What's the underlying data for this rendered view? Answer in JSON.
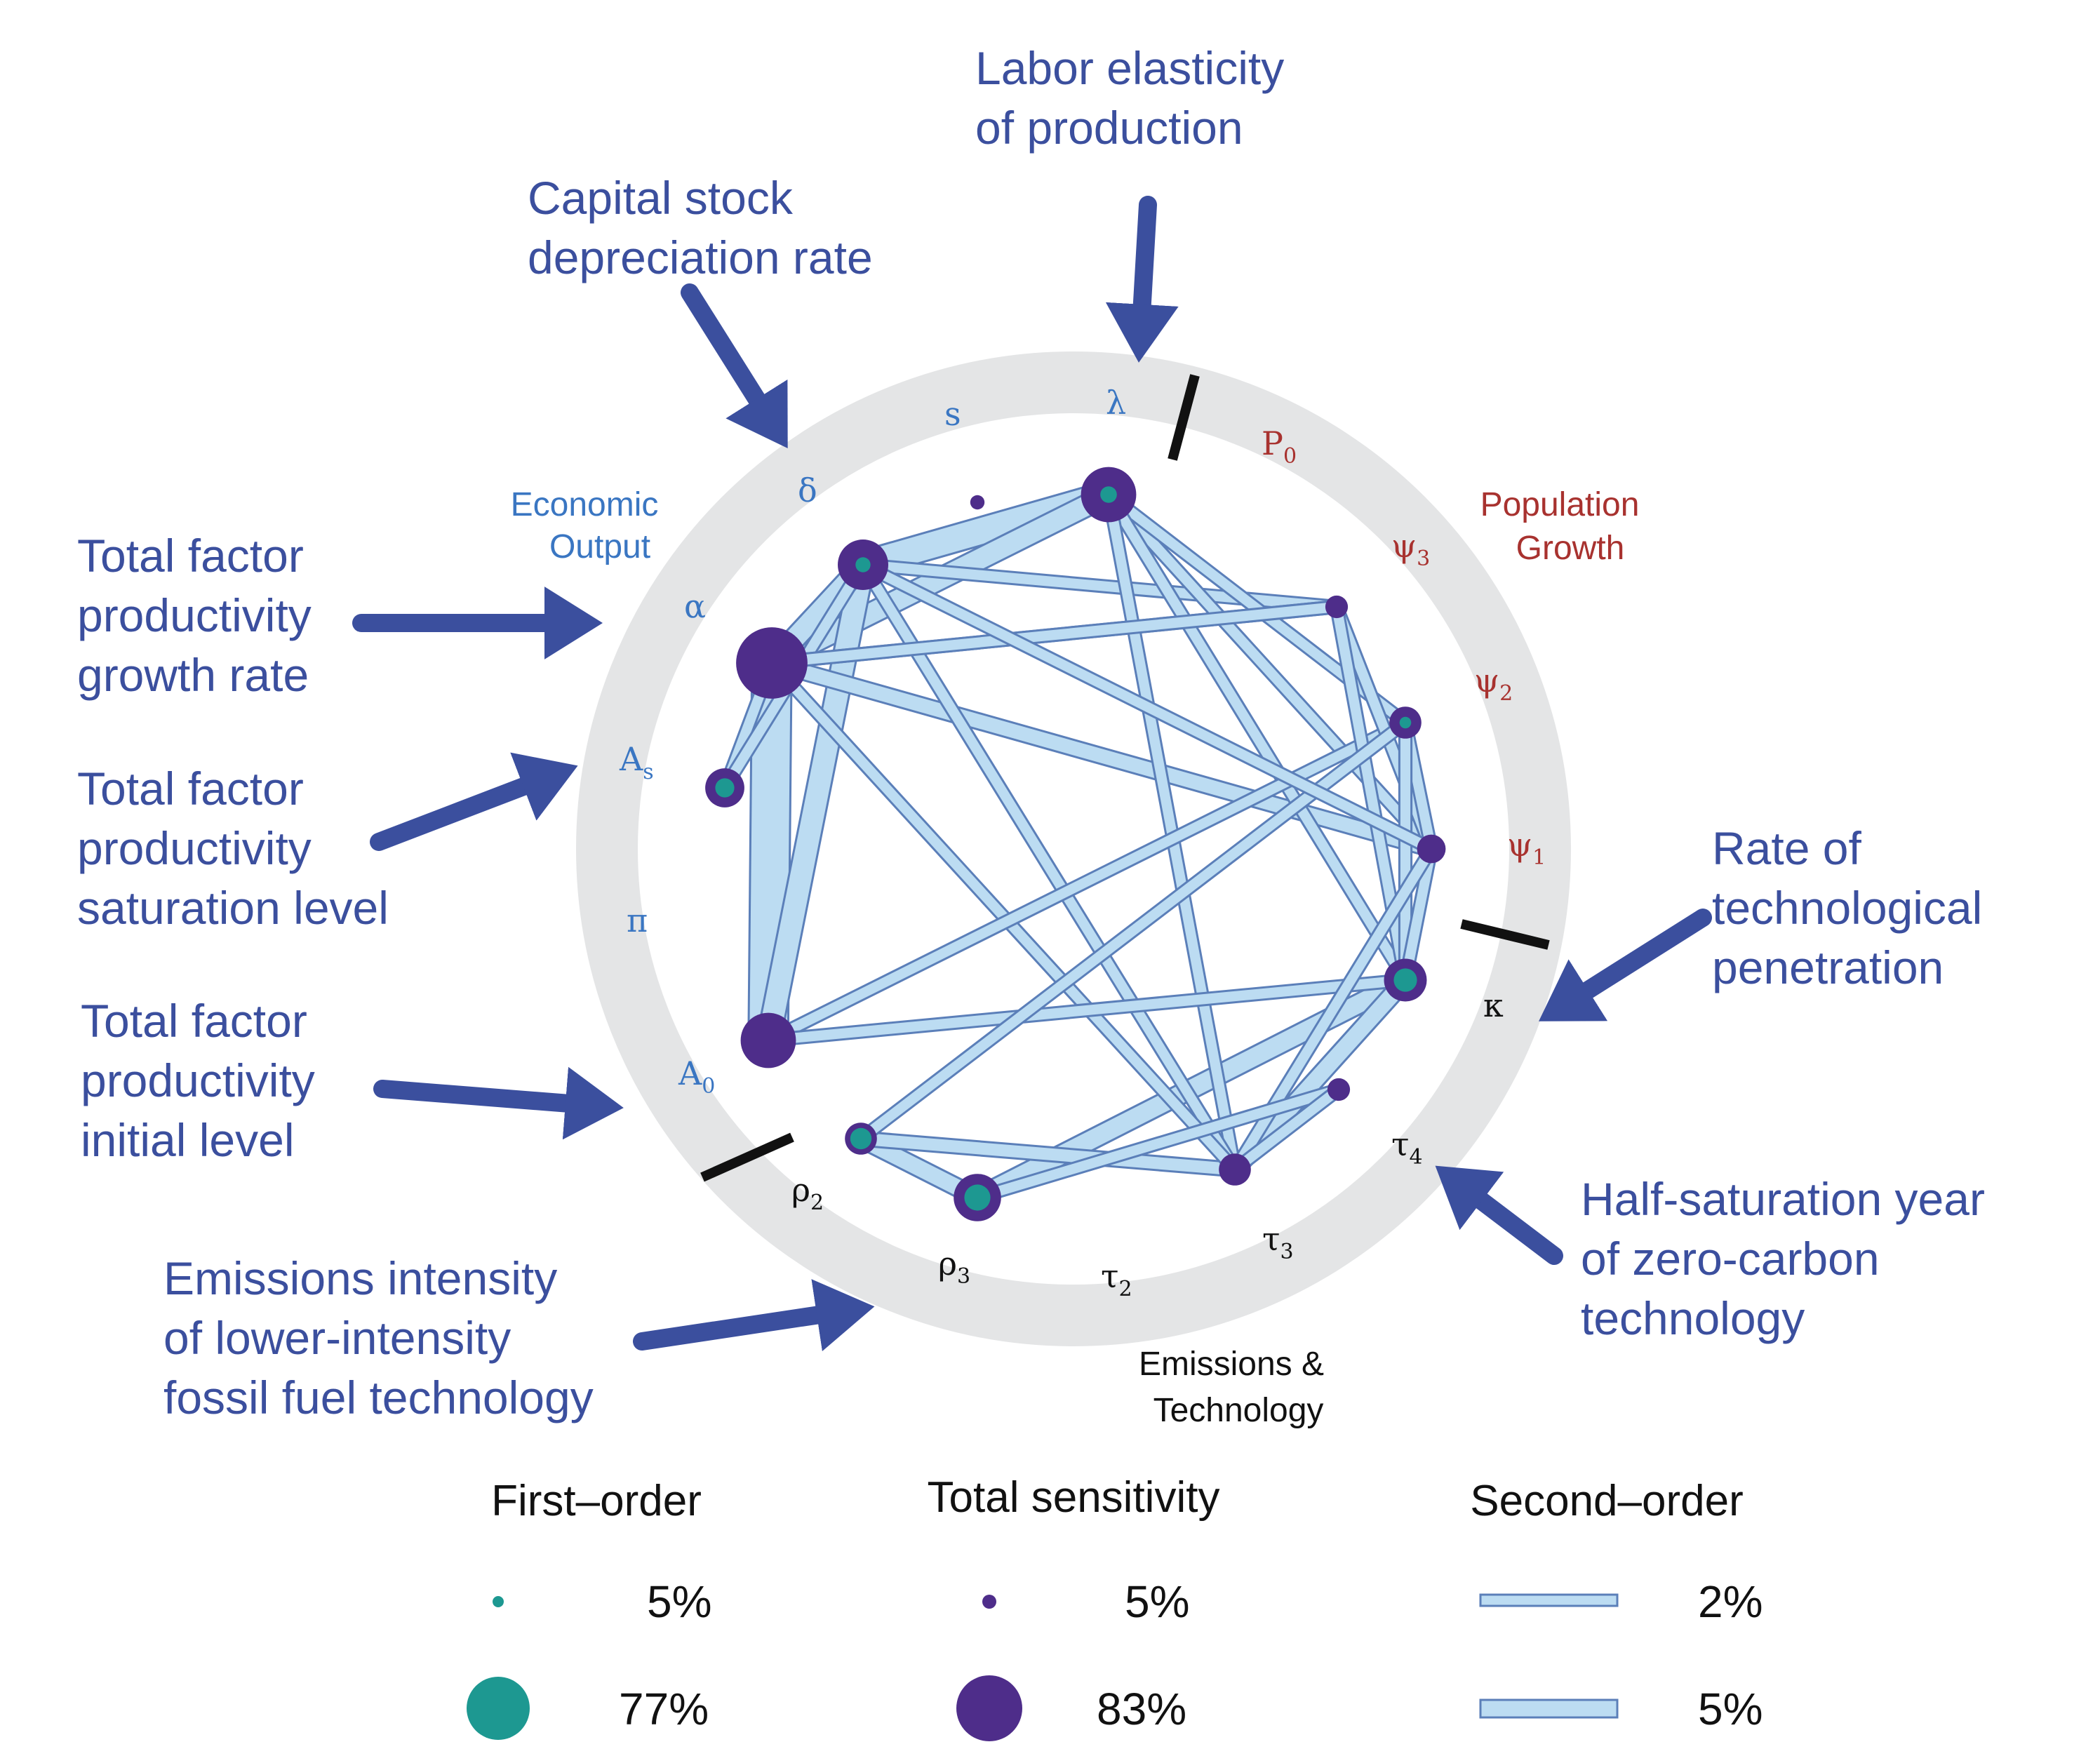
{
  "colors": {
    "ring": "#e4e5e6",
    "link_fill": "#bcdcf2",
    "link_stroke": "#5b7fb9",
    "first_order": "#1d9891",
    "total": "#4e2d8a",
    "arrow": "#3b4f9e",
    "divider": "#111111",
    "blue_text": "#3a76c2",
    "red_text": "#a8322f"
  },
  "groups": {
    "economic_output": [
      "Economic",
      "Output"
    ],
    "population_growth": [
      "Population",
      "Growth"
    ],
    "emissions_technology": [
      "Emissions &",
      "Technology"
    ]
  },
  "symbols": [
    {
      "id": "P0",
      "base": "P",
      "sub": "0",
      "color": "red"
    },
    {
      "id": "psi3",
      "base": "ψ",
      "sub": "3",
      "color": "red"
    },
    {
      "id": "psi2",
      "base": "ψ",
      "sub": "2",
      "color": "red"
    },
    {
      "id": "psi1",
      "base": "ψ",
      "sub": "1",
      "color": "red"
    },
    {
      "id": "kappa",
      "base": "κ",
      "sub": "",
      "color": "black"
    },
    {
      "id": "tau4",
      "base": "τ",
      "sub": "4",
      "color": "black"
    },
    {
      "id": "tau3",
      "base": "τ",
      "sub": "3",
      "color": "black"
    },
    {
      "id": "tau2",
      "base": "τ",
      "sub": "2",
      "color": "black"
    },
    {
      "id": "rho3",
      "base": "ρ",
      "sub": "3",
      "color": "black"
    },
    {
      "id": "rho2",
      "base": "ρ",
      "sub": "2",
      "color": "black"
    },
    {
      "id": "A0",
      "base": "A",
      "sub": "0",
      "color": "blue"
    },
    {
      "id": "pi",
      "base": "π",
      "sub": "",
      "color": "blue"
    },
    {
      "id": "As",
      "base": "A",
      "sub": "s",
      "color": "blue"
    },
    {
      "id": "alpha",
      "base": "α",
      "sub": "",
      "color": "blue"
    },
    {
      "id": "delta",
      "base": "δ",
      "sub": "",
      "color": "blue"
    },
    {
      "id": "s",
      "base": "s",
      "sub": "",
      "color": "blue"
    },
    {
      "id": "lambda",
      "base": "λ",
      "sub": "",
      "color": "blue"
    }
  ],
  "annotations": {
    "labor_elasticity": [
      "Labor elasticity",
      "of production"
    ],
    "capital_depreciation": [
      "Capital stock",
      "depreciation rate"
    ],
    "tfp_growth": [
      "Total factor",
      "productivity",
      "growth rate"
    ],
    "tfp_saturation": [
      "Total factor",
      "productivity",
      "saturation level"
    ],
    "tfp_initial": [
      "Total factor",
      "productivity",
      "initial level"
    ],
    "emissions_intensity": [
      "Emissions intensity",
      "of lower-intensity",
      "fossil fuel technology"
    ],
    "tech_penetration": [
      "Rate of",
      "technological",
      "penetration"
    ],
    "half_saturation": [
      "Half-saturation year",
      "of zero-carbon",
      "technology"
    ]
  },
  "nodes": [
    {
      "id": "lambda",
      "first_order": 0.06,
      "total": 0.3
    },
    {
      "id": "delta",
      "first_order": 0.05,
      "total": 0.25
    },
    {
      "id": "alpha",
      "first_order": 0.0,
      "total": 0.5
    },
    {
      "id": "As",
      "first_order": 0.08,
      "total": 0.15
    },
    {
      "id": "A0",
      "first_order": 0.0,
      "total": 0.3
    },
    {
      "id": "rho2",
      "first_order": 0.1,
      "total": 0.1
    },
    {
      "id": "rho3",
      "first_order": 0.15,
      "total": 0.22
    },
    {
      "id": "tau2",
      "first_order": 0.0,
      "total": 0.1
    },
    {
      "id": "tau4",
      "first_order": 0.0,
      "total": 0.05
    },
    {
      "id": "kappa",
      "first_order": 0.12,
      "total": 0.18
    },
    {
      "id": "psi1",
      "first_order": 0.0,
      "total": 0.08
    },
    {
      "id": "psi2",
      "first_order": 0.03,
      "total": 0.1
    },
    {
      "id": "psi3",
      "first_order": 0.0,
      "total": 0.05
    },
    {
      "id": "s",
      "first_order": 0.0,
      "total": 0.02
    }
  ],
  "links": [
    {
      "from": "alpha",
      "to": "A0",
      "value": 0.09
    },
    {
      "from": "delta",
      "to": "lambda",
      "value": 0.06
    },
    {
      "from": "alpha",
      "to": "lambda",
      "value": 0.045
    },
    {
      "from": "delta",
      "to": "A0",
      "value": 0.05
    },
    {
      "from": "alpha",
      "to": "delta",
      "value": 0.045
    },
    {
      "from": "As",
      "to": "alpha",
      "value": 0.02
    },
    {
      "from": "As",
      "to": "delta",
      "value": 0.02
    },
    {
      "from": "rho3",
      "to": "kappa",
      "value": 0.04
    },
    {
      "from": "rho2",
      "to": "rho3",
      "value": 0.035
    },
    {
      "from": "rho2",
      "to": "tau2",
      "value": 0.025
    },
    {
      "from": "tau2",
      "to": "kappa",
      "value": 0.035
    },
    {
      "from": "alpha",
      "to": "psi1",
      "value": 0.03
    },
    {
      "from": "delta",
      "to": "psi3",
      "value": 0.02
    },
    {
      "from": "alpha",
      "to": "psi3",
      "value": 0.02
    },
    {
      "from": "lambda",
      "to": "psi1",
      "value": 0.02
    },
    {
      "from": "lambda",
      "to": "psi2",
      "value": 0.02
    },
    {
      "from": "lambda",
      "to": "kappa",
      "value": 0.02
    },
    {
      "from": "lambda",
      "to": "tau2",
      "value": 0.02
    },
    {
      "from": "delta",
      "to": "tau2",
      "value": 0.02
    },
    {
      "from": "alpha",
      "to": "tau2",
      "value": 0.02
    },
    {
      "from": "A0",
      "to": "psi2",
      "value": 0.02
    },
    {
      "from": "A0",
      "to": "kappa",
      "value": 0.02
    },
    {
      "from": "psi3",
      "to": "psi1",
      "value": 0.02
    },
    {
      "from": "psi3",
      "to": "kappa",
      "value": 0.02
    },
    {
      "from": "psi2",
      "to": "psi1",
      "value": 0.02
    },
    {
      "from": "psi2",
      "to": "kappa",
      "value": 0.02
    },
    {
      "from": "psi1",
      "to": "kappa",
      "value": 0.02
    },
    {
      "from": "psi1",
      "to": "tau2",
      "value": 0.02
    },
    {
      "from": "psi2",
      "to": "rho2",
      "value": 0.02
    },
    {
      "from": "psi3",
      "to": "alpha",
      "value": 0.02
    },
    {
      "from": "tau4",
      "to": "rho3",
      "value": 0.02
    },
    {
      "from": "tau4",
      "to": "tau2",
      "value": 0.02
    },
    {
      "from": "delta",
      "to": "psi1",
      "value": 0.02
    }
  ],
  "legend": {
    "first_order": {
      "title": "First–order",
      "small": "5%",
      "large": "77%",
      "small_value": 0.05,
      "large_value": 0.77
    },
    "total": {
      "title": "Total sensitivity",
      "small": "5%",
      "large": "83%",
      "small_value": 0.05,
      "large_value": 0.83
    },
    "second_order": {
      "title": "Second–order",
      "small": "2%",
      "large": "5%",
      "small_value": 0.02,
      "large_value": 0.05
    }
  }
}
